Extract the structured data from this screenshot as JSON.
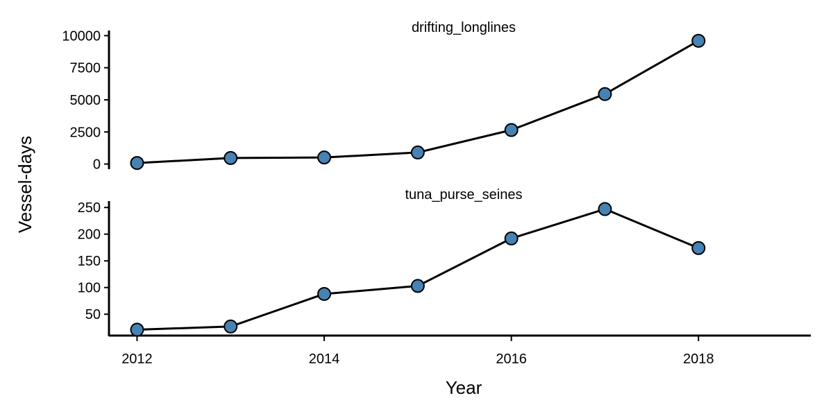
{
  "chart_data": {
    "type": "line",
    "xlabel": "Year",
    "ylabel": "Vessel-days",
    "x_ticks": [
      "2012",
      "2014",
      "2016",
      "2018"
    ],
    "xlim": [
      2011.7,
      2019.2
    ],
    "style": {
      "point_fill": "#4682b4",
      "line_color": "#000000",
      "axis_color": "#000000"
    },
    "panels": [
      {
        "title": "drifting_longlines",
        "ylim": [
          -400,
          10400
        ],
        "y_ticks": [
          0,
          2500,
          5000,
          7500,
          10000
        ],
        "points": [
          {
            "x": 2012,
            "y": 80
          },
          {
            "x": 2013,
            "y": 470
          },
          {
            "x": 2014,
            "y": 510
          },
          {
            "x": 2015,
            "y": 900
          },
          {
            "x": 2016,
            "y": 2650
          },
          {
            "x": 2017,
            "y": 5450
          },
          {
            "x": 2018,
            "y": 9600
          }
        ]
      },
      {
        "title": "tuna_purse_seines",
        "ylim": [
          10,
          262
        ],
        "y_ticks": [
          50,
          100,
          150,
          200,
          250
        ],
        "points": [
          {
            "x": 2012,
            "y": 21
          },
          {
            "x": 2013,
            "y": 27
          },
          {
            "x": 2014,
            "y": 88
          },
          {
            "x": 2015,
            "y": 103
          },
          {
            "x": 2016,
            "y": 192
          },
          {
            "x": 2017,
            "y": 247
          },
          {
            "x": 2018,
            "y": 174
          }
        ]
      }
    ]
  }
}
